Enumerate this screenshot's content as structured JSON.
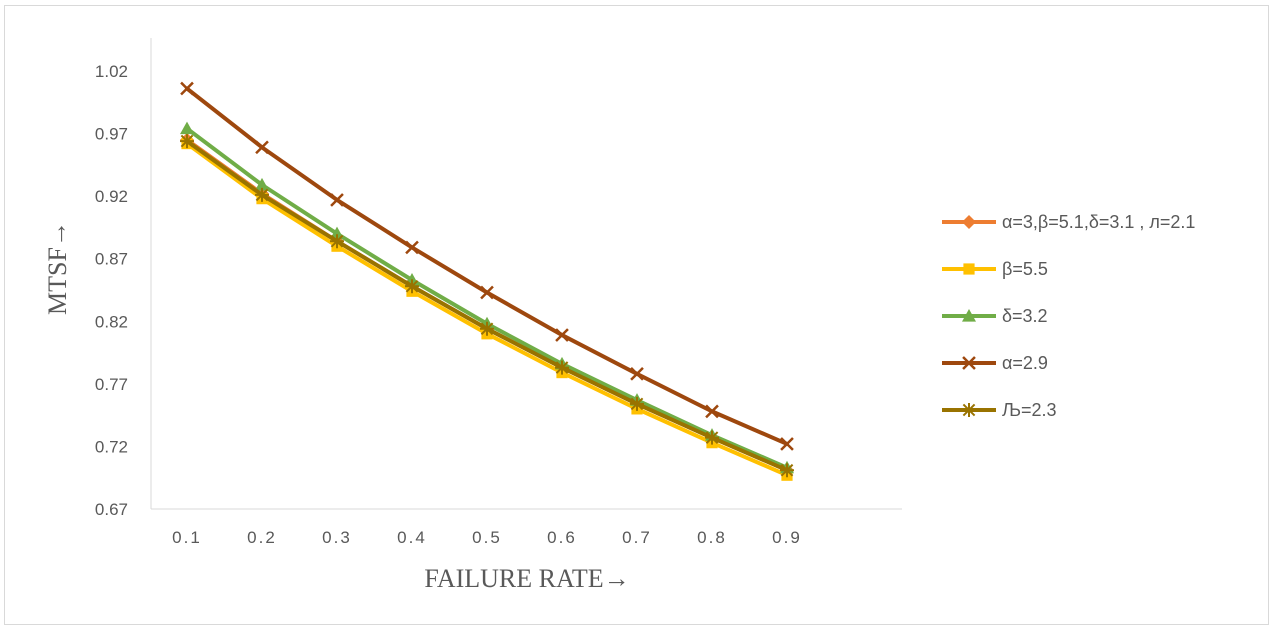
{
  "chart_data": {
    "type": "line",
    "title": "",
    "xlabel": "FAILURE RATE→",
    "ylabel": "MTSF→",
    "categories": [
      "0.1",
      "0.2",
      "0.3",
      "0.4",
      "0.5",
      "0.6",
      "0.7",
      "0.8",
      "0.9"
    ],
    "ylim": [
      0.67,
      1.02
    ],
    "yticks": [
      "0.67",
      "0.72",
      "0.77",
      "0.82",
      "0.87",
      "0.92",
      "0.97",
      "1.02"
    ],
    "grid": false,
    "legend_position": "right",
    "series": [
      {
        "name": "α=3,β=5.1,δ=3.1 , л=2.1",
        "color": "#ED7D31",
        "marker": "diamond",
        "values": [
          0.965,
          0.922,
          0.884,
          0.848,
          0.814,
          0.783,
          0.754,
          0.727,
          0.701
        ]
      },
      {
        "name": "β=5.5",
        "color": "#FFC000",
        "marker": "square",
        "values": [
          0.962,
          0.918,
          0.88,
          0.844,
          0.81,
          0.779,
          0.75,
          0.723,
          0.697
        ]
      },
      {
        "name": "δ=3.2",
        "color": "#70AD47",
        "marker": "triangle",
        "values": [
          0.974,
          0.929,
          0.89,
          0.853,
          0.818,
          0.786,
          0.757,
          0.729,
          0.703
        ]
      },
      {
        "name": "α=2.9",
        "color": "#9E480E",
        "marker": "x",
        "values": [
          1.006,
          0.959,
          0.917,
          0.879,
          0.843,
          0.809,
          0.778,
          0.748,
          0.722
        ]
      },
      {
        "name": "Љ=2.3",
        "color": "#997300",
        "marker": "star",
        "values": [
          0.964,
          0.921,
          0.884,
          0.848,
          0.814,
          0.783,
          0.754,
          0.727,
          0.701
        ]
      }
    ]
  }
}
